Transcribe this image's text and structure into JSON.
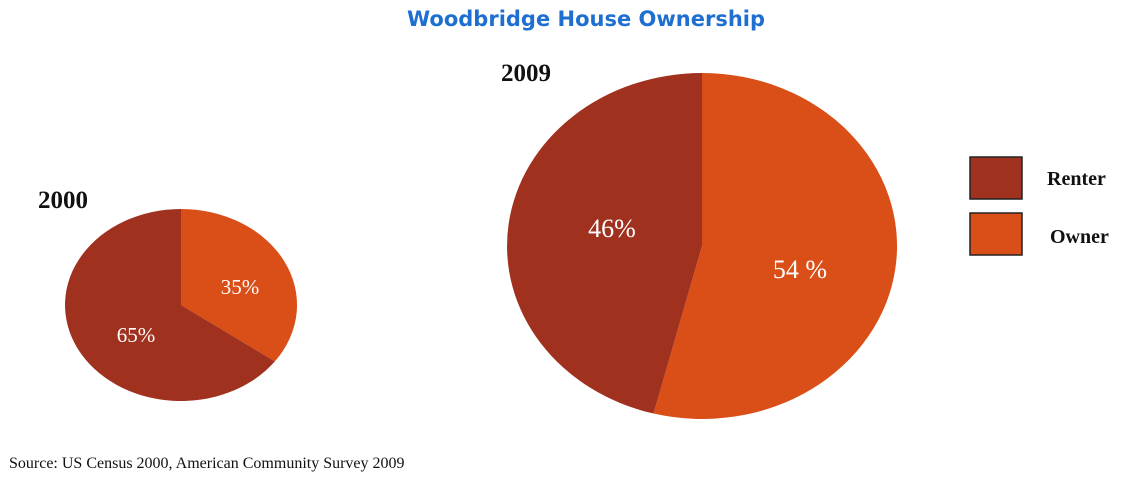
{
  "colors": {
    "renter": "#A0311F",
    "owner": "#DA4E17",
    "title": "#1E6FD0",
    "text": "#111111",
    "label": "#ffffff"
  },
  "chart_data": {
    "type": "pie",
    "title": "Woodbridge House Ownership",
    "legend": {
      "placement": "right",
      "entries": [
        "Renter",
        "Owner"
      ]
    },
    "pies": [
      {
        "year": "2000",
        "slices": [
          {
            "name": "Renter",
            "value": 65,
            "label": "65%"
          },
          {
            "name": "Owner",
            "value": 35,
            "label": "35%"
          }
        ]
      },
      {
        "year": "2009",
        "slices": [
          {
            "name": "Renter",
            "value": 46,
            "label": "46%"
          },
          {
            "name": "Owner",
            "value": 54,
            "label": "54 %"
          }
        ]
      }
    ],
    "source": "Source:  US Census 2000, American Community Survey 2009"
  }
}
